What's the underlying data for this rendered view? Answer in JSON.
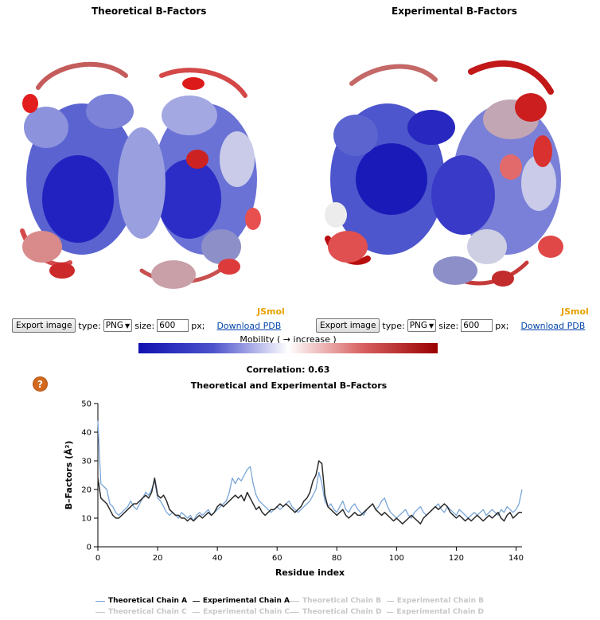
{
  "panels": [
    {
      "title": "Theoretical B-Factors",
      "jsmol": "JSmol",
      "export_button": "Export image",
      "type_label": "type:",
      "type_value": "PNG",
      "size_label": "size:",
      "size_value": "600",
      "px_label": "px;",
      "download_link": "Download PDB"
    },
    {
      "title": "Experimental B-Factors",
      "jsmol": "JSmol",
      "export_button": "Export image",
      "type_label": "type:",
      "type_value": "PNG",
      "size_label": "size:",
      "size_value": "600",
      "px_label": "px;",
      "download_link": "Download PDB"
    }
  ],
  "mobility": {
    "label": "Mobility ( → increase )",
    "low_color": "#1111b0",
    "mid_color": "#ffffff",
    "high_color": "#9a0000"
  },
  "correlation": "Correlation: 0.63",
  "help_icon": "?",
  "colors": {
    "theoretical": "#7aa6d8",
    "experimental": "#2b2b2b",
    "inactive_legend": "#c8c8c8",
    "help": "#d2691e"
  },
  "chart_data": {
    "type": "line",
    "title": "Theoretical and Experimental B–Factors",
    "xlabel": "Residue index",
    "ylabel": "B–Factors (Å²)",
    "xlim": [
      0,
      142
    ],
    "ylim": [
      0,
      50
    ],
    "xticks": [
      "0",
      "20",
      "40",
      "60",
      "80",
      "100",
      "120",
      "140"
    ],
    "yticks": [
      "0",
      "10",
      "20",
      "30",
      "40",
      "50"
    ],
    "grid": false,
    "legend_position": "bottom",
    "series": [
      {
        "name": "Theoretical Chain A",
        "active": true,
        "color": "#7aa6d8",
        "values": [
          44,
          22,
          21,
          20,
          15,
          14,
          12,
          11,
          12,
          13,
          14,
          16,
          14,
          13,
          15,
          17,
          19,
          18,
          20,
          23,
          17,
          16,
          14,
          12,
          11,
          12,
          11,
          10,
          12,
          11,
          10,
          11,
          9,
          11,
          12,
          11,
          12,
          13,
          11,
          12,
          13,
          14,
          15,
          16,
          19,
          24,
          22,
          24,
          23,
          25,
          27,
          28,
          22,
          18,
          16,
          15,
          14,
          13,
          12,
          13,
          14,
          13,
          14,
          15,
          16,
          14,
          13,
          12,
          13,
          14,
          15,
          16,
          18,
          20,
          26,
          22,
          16,
          14,
          15,
          13,
          12,
          14,
          16,
          13,
          12,
          14,
          15,
          13,
          12,
          11,
          13,
          14,
          15,
          13,
          14,
          16,
          17,
          14,
          12,
          11,
          10,
          11,
          12,
          13,
          11,
          10,
          12,
          13,
          14,
          12,
          11,
          12,
          13,
          14,
          15,
          13,
          12,
          14,
          13,
          12,
          11,
          13,
          12,
          11,
          10,
          11,
          12,
          11,
          12,
          13,
          11,
          12,
          13,
          12,
          11,
          13,
          12,
          14,
          13,
          12,
          13,
          15,
          20
        ]
      },
      {
        "name": "Experimental Chain A",
        "active": true,
        "color": "#2b2b2b",
        "values": [
          24,
          17,
          16,
          15,
          13,
          11,
          10,
          10,
          11,
          12,
          13,
          14,
          15,
          15,
          16,
          17,
          18,
          17,
          19,
          24,
          18,
          17,
          18,
          16,
          13,
          12,
          11,
          11,
          10,
          10,
          9,
          10,
          9,
          10,
          11,
          10,
          11,
          12,
          11,
          12,
          14,
          15,
          14,
          15,
          16,
          17,
          18,
          17,
          18,
          16,
          19,
          17,
          15,
          13,
          14,
          12,
          11,
          12,
          13,
          13,
          14,
          15,
          14,
          15,
          14,
          13,
          12,
          13,
          14,
          16,
          17,
          19,
          23,
          25,
          30,
          29,
          18,
          14,
          13,
          12,
          11,
          12,
          13,
          11,
          10,
          11,
          12,
          11,
          11,
          12,
          13,
          14,
          15,
          13,
          12,
          11,
          12,
          11,
          10,
          9,
          10,
          9,
          8,
          9,
          10,
          11,
          10,
          9,
          8,
          10,
          11,
          12,
          13,
          14,
          13,
          14,
          15,
          14,
          12,
          11,
          10,
          11,
          10,
          9,
          10,
          9,
          10,
          11,
          10,
          9,
          10,
          11,
          10,
          11,
          12,
          10,
          9,
          11,
          12,
          10,
          11,
          12,
          12
        ]
      },
      {
        "name": "Theoretical Chain B",
        "active": false
      },
      {
        "name": "Experimental Chain B",
        "active": false
      },
      {
        "name": "Theoretical Chain C",
        "active": false
      },
      {
        "name": "Experimental Chain C",
        "active": false
      },
      {
        "name": "Theoretical Chain D",
        "active": false
      },
      {
        "name": "Experimental Chain D",
        "active": false
      }
    ]
  }
}
